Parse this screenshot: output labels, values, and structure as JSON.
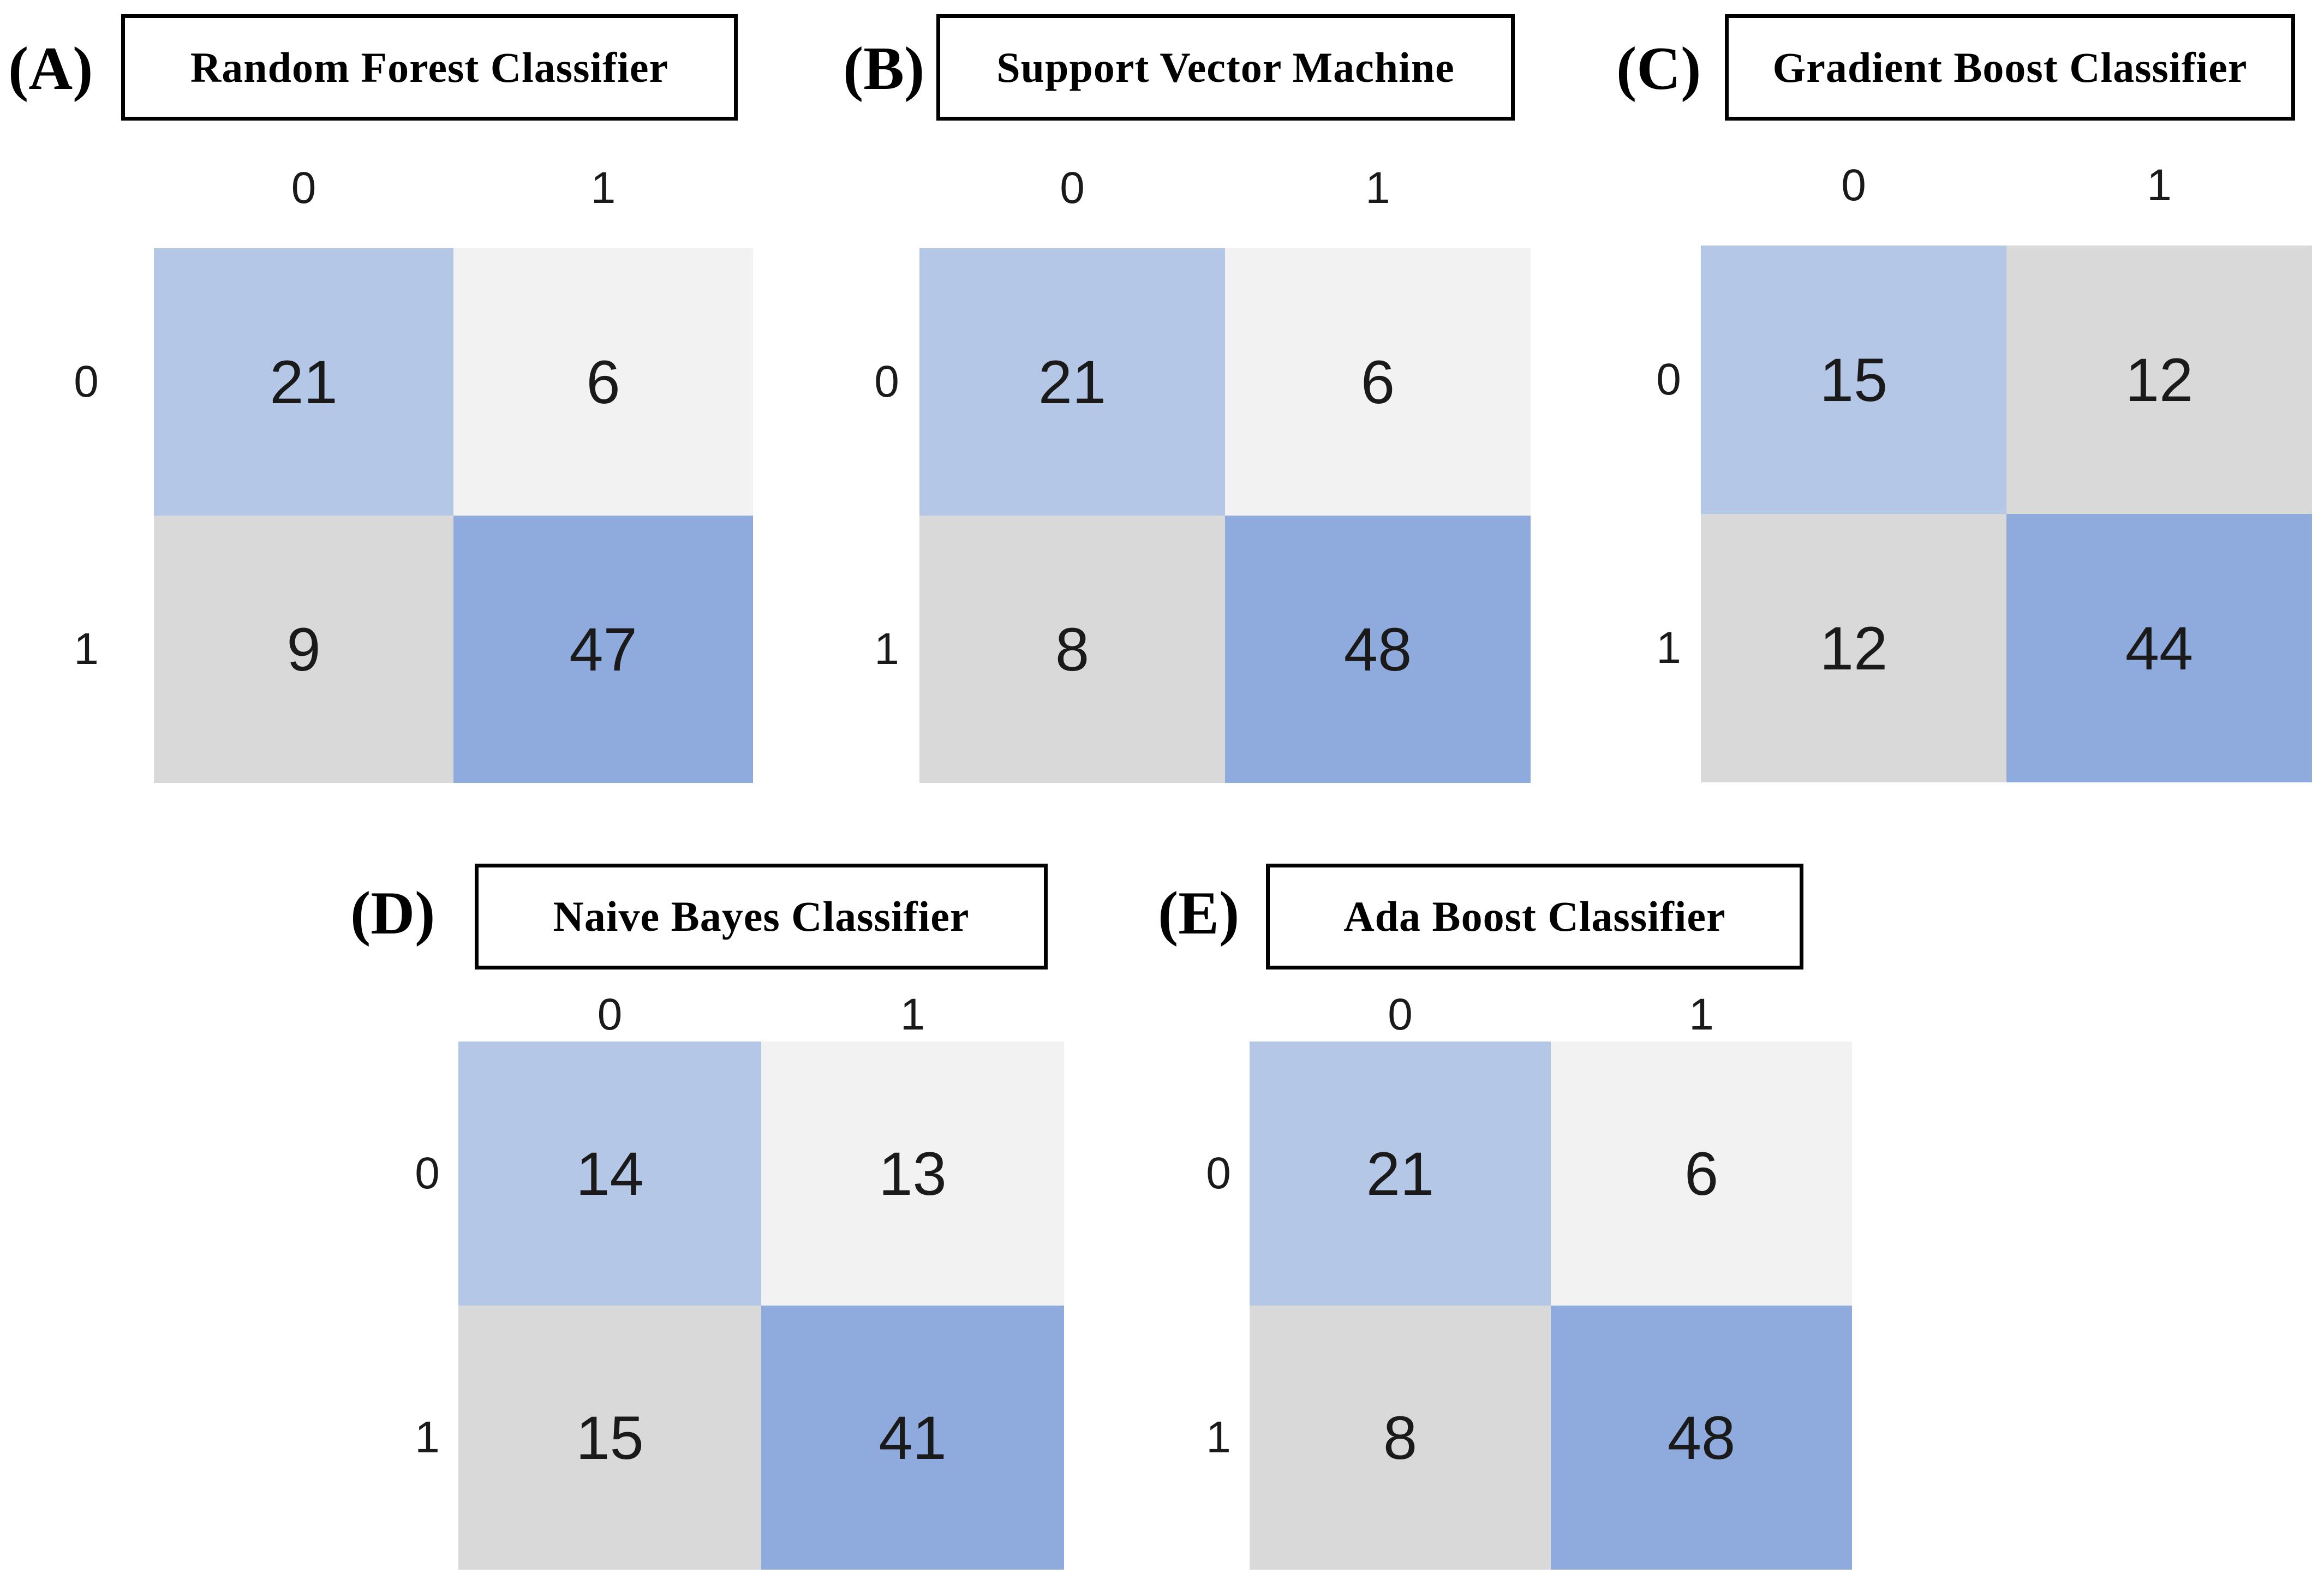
{
  "figure": {
    "background_color": "#ffffff",
    "description_title": "Confusion matrices of five classifiers"
  },
  "palette": {
    "light_blue": "#b4c7e7",
    "medium_blue": "#8faadc",
    "gray": "#d9d9d9",
    "near_white": "#f2f2f2",
    "box_border": "#000000",
    "text": "#1a1a1a"
  },
  "panels": [
    {
      "letter": "(A)",
      "title": "Random Forest Classifier",
      "col_labels": [
        "0",
        "1"
      ],
      "row_labels": [
        "0",
        "1"
      ],
      "cells": [
        [
          {
            "value": "21",
            "color": "#b4c7e7"
          },
          {
            "value": "6",
            "color": "#f2f2f2"
          }
        ],
        [
          {
            "value": "9",
            "color": "#d9d9d9"
          },
          {
            "value": "47",
            "color": "#8faadc"
          }
        ]
      ]
    },
    {
      "letter": "(B)",
      "title": "Support Vector Machine",
      "col_labels": [
        "0",
        "1"
      ],
      "row_labels": [
        "0",
        "1"
      ],
      "cells": [
        [
          {
            "value": "21",
            "color": "#b4c7e7"
          },
          {
            "value": "6",
            "color": "#f2f2f2"
          }
        ],
        [
          {
            "value": "8",
            "color": "#d9d9d9"
          },
          {
            "value": "48",
            "color": "#8faadc"
          }
        ]
      ]
    },
    {
      "letter": "(C)",
      "title": "Gradient Boost Classifier",
      "col_labels": [
        "0",
        "1"
      ],
      "row_labels": [
        "0",
        "1"
      ],
      "cells": [
        [
          {
            "value": "15",
            "color": "#b4c7e7"
          },
          {
            "value": "12",
            "color": "#d9d9d9"
          }
        ],
        [
          {
            "value": "12",
            "color": "#d9d9d9"
          },
          {
            "value": "44",
            "color": "#8faadc"
          }
        ]
      ]
    },
    {
      "letter": "(D)",
      "title": "Naive Bayes Classifier",
      "col_labels": [
        "0",
        "1"
      ],
      "row_labels": [
        "0",
        "1"
      ],
      "cells": [
        [
          {
            "value": "14",
            "color": "#b4c7e7"
          },
          {
            "value": "13",
            "color": "#f2f2f2"
          }
        ],
        [
          {
            "value": "15",
            "color": "#d9d9d9"
          },
          {
            "value": "41",
            "color": "#8faadc"
          }
        ]
      ]
    },
    {
      "letter": "(E)",
      "title": "Ada Boost Classifier",
      "col_labels": [
        "0",
        "1"
      ],
      "row_labels": [
        "0",
        "1"
      ],
      "cells": [
        [
          {
            "value": "21",
            "color": "#b4c7e7"
          },
          {
            "value": "6",
            "color": "#f2f2f2"
          }
        ],
        [
          {
            "value": "8",
            "color": "#d9d9d9"
          },
          {
            "value": "48",
            "color": "#8faadc"
          }
        ]
      ]
    }
  ],
  "chart_data": [
    {
      "type": "heatmap",
      "title": "Random Forest Classifier",
      "panel": "A",
      "x_labels": [
        "0",
        "1"
      ],
      "y_labels": [
        "0",
        "1"
      ],
      "values": [
        [
          21,
          6
        ],
        [
          9,
          47
        ]
      ]
    },
    {
      "type": "heatmap",
      "title": "Support Vector Machine",
      "panel": "B",
      "x_labels": [
        "0",
        "1"
      ],
      "y_labels": [
        "0",
        "1"
      ],
      "values": [
        [
          21,
          6
        ],
        [
          8,
          48
        ]
      ]
    },
    {
      "type": "heatmap",
      "title": "Gradient Boost Classifier",
      "panel": "C",
      "x_labels": [
        "0",
        "1"
      ],
      "y_labels": [
        "0",
        "1"
      ],
      "values": [
        [
          15,
          12
        ],
        [
          12,
          44
        ]
      ]
    },
    {
      "type": "heatmap",
      "title": "Naive Bayes Classifier",
      "panel": "D",
      "x_labels": [
        "0",
        "1"
      ],
      "y_labels": [
        "0",
        "1"
      ],
      "values": [
        [
          14,
          13
        ],
        [
          15,
          41
        ]
      ]
    },
    {
      "type": "heatmap",
      "title": "Ada Boost Classifier",
      "panel": "E",
      "x_labels": [
        "0",
        "1"
      ],
      "y_labels": [
        "0",
        "1"
      ],
      "values": [
        [
          21,
          6
        ],
        [
          8,
          48
        ]
      ]
    }
  ]
}
